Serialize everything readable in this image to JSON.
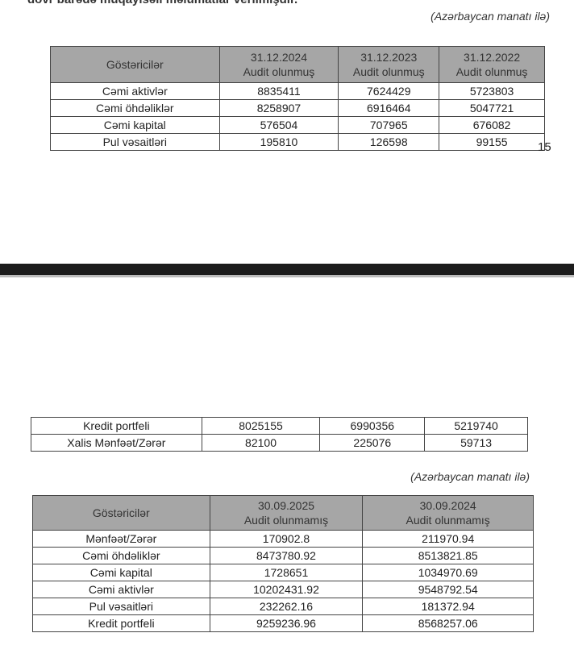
{
  "intro_text": "dövr barədə müqayisəli məlumatlar verilmişdir.",
  "currency_caption": "(Azərbaycan manatı ilə)",
  "page_number": "15",
  "table1": {
    "headers": [
      "Göstəricilər",
      "31.12.2024",
      "31.12.2023",
      "31.12.2022"
    ],
    "subheaders": [
      "Audit olunmuş",
      "Audit olunmuş",
      "Audit olunmuş"
    ],
    "rows": [
      [
        "Cəmi aktivlər",
        "8835411",
        "7624429",
        "5723803"
      ],
      [
        "Cəmi öhdəliklər",
        "8258907",
        "6916464",
        "5047721"
      ],
      [
        "Cəmi kapital",
        "576504",
        "707965",
        "676082"
      ],
      [
        "Pul vəsaitləri",
        "195810",
        "126598",
        "99155"
      ]
    ]
  },
  "table1_continued": {
    "rows": [
      [
        "Kredit portfeli",
        "8025155",
        "6990356",
        "5219740"
      ],
      [
        "Xalis Mənfəət/Zərər",
        "82100",
        "225076",
        "59713"
      ]
    ]
  },
  "table2": {
    "headers": [
      "Göstəricilər",
      "30.09.2025",
      "30.09.2024"
    ],
    "subheaders": [
      "Audit olunmamış",
      "Audit olunmamış"
    ],
    "rows": [
      [
        "Mənfəət/Zərər",
        "170902.8",
        "211970.94"
      ],
      [
        "Cəmi öhdəliklər",
        "8473780.92",
        "8513821.85"
      ],
      [
        "Cəmi kapital",
        "1728651",
        "1034970.69"
      ],
      [
        "Cəmi aktivlər",
        "10202431.92",
        "9548792.54"
      ],
      [
        "Pul vəsaitləri",
        "232262.16",
        "181372.94"
      ],
      [
        "Kredit portfeli",
        "9259236.96",
        "8568257.06"
      ]
    ]
  }
}
